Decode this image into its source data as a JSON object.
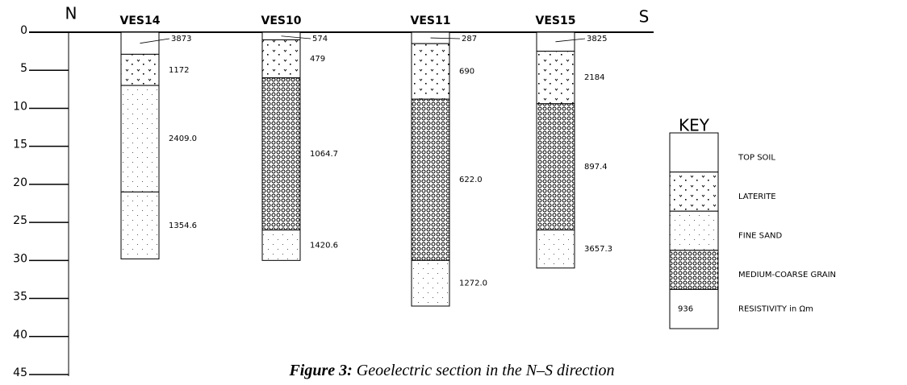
{
  "north": "N",
  "south": "S",
  "depth_axis": {
    "lim": [
      0,
      45
    ],
    "ticks": [
      0,
      5,
      10,
      15,
      20,
      25,
      30,
      35,
      40,
      45
    ]
  },
  "boreholes": [
    {
      "name": "VES14",
      "layers": [
        {
          "from": 0,
          "to": 2.9,
          "lithology": "TOP SOIL",
          "resistivity": "3873"
        },
        {
          "from": 2.9,
          "to": 7,
          "lithology": "LATERITE",
          "resistivity": "1172"
        },
        {
          "from": 7,
          "to": 21,
          "lithology": "FINE SAND",
          "resistivity": "2409.0"
        },
        {
          "from": 21,
          "to": 29.8,
          "lithology": "FINE SAND",
          "resistivity": "1354.6"
        }
      ]
    },
    {
      "name": "VES10",
      "layers": [
        {
          "from": 0,
          "to": 1,
          "lithology": "TOP SOIL",
          "resistivity": "574"
        },
        {
          "from": 1,
          "to": 6,
          "lithology": "LATERITE",
          "resistivity": "479"
        },
        {
          "from": 6,
          "to": 26,
          "lithology": "MEDIUM-COARSE GRAIN",
          "resistivity": "1064.7"
        },
        {
          "from": 26,
          "to": 30,
          "lithology": "FINE SAND",
          "resistivity": "1420.6"
        }
      ]
    },
    {
      "name": "VES11",
      "layers": [
        {
          "from": 0,
          "to": 1.5,
          "lithology": "TOP SOIL",
          "resistivity": "287"
        },
        {
          "from": 1.5,
          "to": 8.8,
          "lithology": "LATERITE",
          "resistivity": "690"
        },
        {
          "from": 8.8,
          "to": 30,
          "lithology": "MEDIUM-COARSE GRAIN",
          "resistivity": "622.0"
        },
        {
          "from": 30,
          "to": 36,
          "lithology": "FINE SAND",
          "resistivity": "1272.0"
        }
      ]
    },
    {
      "name": "VES15",
      "layers": [
        {
          "from": 0,
          "to": 2.5,
          "lithology": "TOP SOIL",
          "resistivity": "3825"
        },
        {
          "from": 2.5,
          "to": 9.4,
          "lithology": "LATERITE",
          "resistivity": "2184"
        },
        {
          "from": 9.4,
          "to": 26,
          "lithology": "MEDIUM-COARSE GRAIN",
          "resistivity": "897.4"
        },
        {
          "from": 26,
          "to": 31,
          "lithology": "FINE SAND",
          "resistivity": "3657.3"
        }
      ]
    }
  ],
  "key": {
    "title": "KEY",
    "items": [
      "TOP SOIL",
      "LATERITE",
      "FINE SAND",
      "MEDIUM-COARSE GRAIN"
    ],
    "resistivity_sample": "936",
    "resistivity_label": "RESISTIVITY in Ωm"
  },
  "caption": {
    "label": "Figure 3:",
    "text": " Geoelectric section in the N–S direction"
  }
}
